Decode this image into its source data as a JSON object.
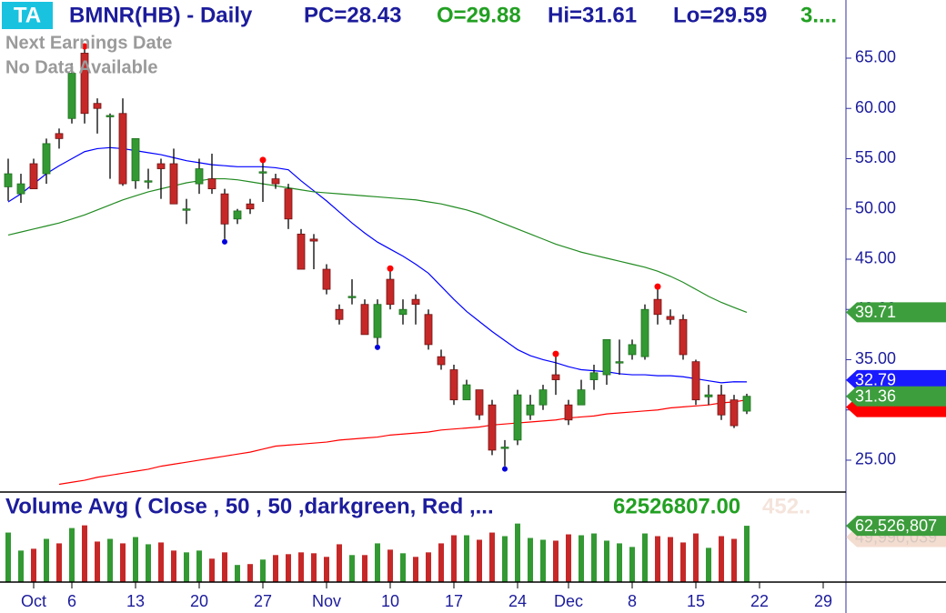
{
  "header": {
    "badge": "TA",
    "title": "BMNR(HB) - Daily",
    "pc": "PC=28.43",
    "open": "O=29.88",
    "high": "Hi=31.61",
    "low": "Lo=29.59",
    "more": "3....",
    "earnings": "Next Earnings Date",
    "earnings_note": "No Data Available"
  },
  "chart_data": {
    "type": "candlestick",
    "categories": [
      null,
      null,
      "Oct",
      null,
      null,
      "6",
      null,
      null,
      null,
      null,
      "13",
      null,
      null,
      null,
      null,
      "20",
      null,
      null,
      null,
      null,
      "27",
      null,
      null,
      null,
      null,
      "Nov",
      null,
      null,
      null,
      null,
      "10",
      null,
      null,
      null,
      null,
      "17",
      null,
      null,
      null,
      null,
      "24",
      null,
      null,
      null,
      "Dec",
      null,
      null,
      null,
      null,
      "8",
      null,
      null,
      null,
      null,
      "15",
      null,
      null,
      null,
      null,
      "22",
      null,
      null,
      null,
      null,
      "29"
    ],
    "open": [
      52.2,
      51.5,
      54.5,
      53.5,
      57.5,
      59,
      65.5,
      60.5,
      59.3,
      59.5,
      52.8,
      52.8,
      54.5,
      54.5,
      50,
      52.5,
      53,
      51.5,
      49,
      50.5,
      53.7,
      53,
      52,
      47.5,
      47,
      44,
      40,
      41.3,
      40.5,
      37.2,
      43,
      39.5,
      41,
      39.5,
      35.3,
      34,
      31,
      32,
      30.5,
      26.3,
      27,
      29.5,
      30.5,
      33.5,
      30.5,
      30.5,
      33,
      33.5,
      34.8,
      35.5,
      35.3,
      41,
      39.3,
      39,
      34.8,
      31.3,
      31.5,
      31,
      29.88,
      null,
      null,
      null,
      null,
      null,
      null
    ],
    "high": [
      55,
      53.5,
      55,
      57,
      58,
      64.5,
      65.9,
      61,
      59.5,
      61,
      57,
      54,
      55,
      56,
      51,
      55,
      55.5,
      52,
      50,
      51,
      54.6,
      53.5,
      52.5,
      48,
      47.5,
      44.5,
      40.5,
      43,
      41,
      41,
      43.8,
      41,
      41.5,
      40,
      36,
      34.5,
      33,
      32,
      31,
      27,
      32,
      31.5,
      32.5,
      35.3,
      31,
      33,
      34.5,
      37,
      37,
      37,
      40.5,
      42,
      40,
      39.5,
      35,
      32.5,
      32.5,
      31.5,
      31.61,
      null,
      null,
      null,
      null,
      null,
      null
    ],
    "low": [
      50.8,
      50.6,
      52,
      52.5,
      56,
      58.5,
      58.5,
      57.5,
      53,
      52.3,
      52,
      52,
      51,
      50.5,
      48.5,
      51.5,
      51.5,
      47,
      48.5,
      49.5,
      50.7,
      52,
      48,
      44,
      44,
      41.5,
      38.5,
      40.5,
      37.5,
      36.5,
      40,
      38.5,
      38.5,
      36,
      34,
      30.5,
      31,
      29,
      25.5,
      24.4,
      26.5,
      29,
      30,
      31.5,
      28.5,
      30.5,
      32,
      32.5,
      33.5,
      35,
      35,
      38.5,
      38.5,
      35,
      30.5,
      30.5,
      29,
      28.2,
      29.59,
      null,
      null,
      null,
      null,
      null,
      null
    ],
    "close": [
      53.5,
      52.5,
      52,
      56.5,
      57,
      63.5,
      59.5,
      60,
      59.3,
      52.5,
      57,
      52.8,
      54,
      50.5,
      50,
      54,
      52,
      48.5,
      49.8,
      50,
      53.7,
      52.5,
      49,
      44,
      46.8,
      42,
      39,
      41.3,
      37.5,
      40.5,
      40.5,
      40,
      40.5,
      36.5,
      34.5,
      31,
      32.5,
      29.5,
      26,
      26.3,
      31.5,
      30.5,
      32,
      33,
      29,
      32,
      33.7,
      37,
      34.8,
      36.5,
      40,
      39.5,
      39,
      35.5,
      31,
      31.5,
      29.5,
      28.43,
      31.36,
      null,
      null,
      null,
      null,
      null,
      null
    ],
    "up_color": "#339933",
    "down_color": "#c62828",
    "high_markers": [
      6,
      20,
      30,
      43,
      51
    ],
    "low_markers": [
      17,
      29,
      39
    ],
    "series": [
      {
        "color": "#0000ff",
        "values": [
          50.7,
          51.5,
          52.5,
          53.5,
          54.3,
          55,
          55.7,
          56,
          56.1,
          56,
          55.8,
          55.6,
          55.4,
          55.1,
          54.8,
          54.6,
          54.4,
          54.3,
          54.2,
          54.2,
          54.2,
          54.1,
          53.9,
          52.8,
          51.8,
          50.8,
          49.7,
          48.6,
          47.6,
          46.7,
          46,
          45.3,
          44.5,
          43.6,
          42.3,
          41,
          39.8,
          38.8,
          37.8,
          36.9,
          36,
          35.4,
          35,
          34.7,
          34.3,
          34,
          33.9,
          33.8,
          33.6,
          33.5,
          33.5,
          33.4,
          33.4,
          33.3,
          33.1,
          32.9,
          32.7,
          32.8,
          32.79,
          null,
          null,
          null,
          null,
          null,
          null
        ]
      },
      {
        "color": "#228b22",
        "values": [
          47.4,
          47.7,
          48,
          48.3,
          48.6,
          49,
          49.4,
          49.9,
          50.4,
          50.9,
          51.3,
          51.7,
          52,
          52.3,
          52.6,
          52.8,
          53,
          53,
          52.9,
          52.7,
          52.5,
          52.3,
          52.1,
          51.9,
          51.7,
          51.6,
          51.5,
          51.4,
          51.3,
          51.2,
          51.1,
          51,
          50.9,
          50.7,
          50.5,
          50.2,
          49.9,
          49.5,
          49,
          48.5,
          48,
          47.5,
          47,
          46.5,
          46.1,
          45.7,
          45.4,
          45.1,
          44.8,
          44.5,
          44.2,
          43.8,
          43.3,
          42.7,
          42,
          41.3,
          40.7,
          40.2,
          39.71,
          null,
          null,
          null,
          null,
          null,
          null
        ]
      },
      {
        "color": "#ff0000",
        "values": [
          null,
          null,
          null,
          null,
          22.6,
          22.8,
          23.0,
          23.3,
          23.5,
          23.7,
          23.9,
          24.1,
          24.4,
          24.6,
          24.8,
          25.0,
          25.2,
          25.4,
          25.6,
          25.8,
          26.1,
          26.4,
          26.5,
          26.6,
          26.7,
          26.8,
          27.0,
          27.1,
          27.2,
          27.3,
          27.5,
          27.6,
          27.7,
          27.8,
          28.0,
          28.1,
          28.2,
          28.3,
          28.5,
          28.6,
          28.7,
          28.8,
          28.9,
          29.0,
          29.2,
          29.3,
          29.4,
          29.6,
          29.7,
          29.8,
          29.9,
          30.0,
          30.2,
          30.3,
          30.4,
          30.5,
          30.7,
          30.8,
          31.0,
          null,
          null,
          null,
          null,
          null,
          null
        ]
      }
    ],
    "ylim": [
      21.92,
      70.79
    ],
    "yticks": [
      {
        "value": 25,
        "label": "25.00"
      },
      {
        "value": 30,
        "label": "30.00"
      },
      {
        "value": 35,
        "label": "35.00"
      },
      {
        "value": 40,
        "label": "40.00"
      },
      {
        "value": 45,
        "label": "45.00"
      },
      {
        "value": 50,
        "label": "50.00"
      },
      {
        "value": 55,
        "label": "55.00"
      },
      {
        "value": 60,
        "label": "60.00"
      },
      {
        "value": 65,
        "label": "65.00"
      }
    ],
    "volume": {
      "title": "Volume Avg ( Close , 50 , 50 ,darkgreen, Red ,...",
      "legend_value": "62526807.00",
      "legend_faint": "452..",
      "values": [
        55000000,
        35000000,
        37000000,
        48000000,
        43000000,
        60000000,
        63000000,
        45000000,
        48000000,
        43000000,
        50000000,
        42000000,
        44000000,
        35000000,
        33000000,
        35000000,
        26000000,
        33000000,
        19000000,
        20000000,
        25000000,
        30000000,
        31000000,
        33000000,
        32000000,
        28000000,
        42000000,
        30000000,
        30000000,
        43000000,
        36000000,
        32000000,
        28000000,
        33000000,
        43000000,
        52000000,
        52000000,
        47000000,
        55000000,
        51000000,
        65000000,
        49000000,
        47000000,
        46000000,
        53000000,
        52000000,
        54000000,
        46000000,
        43000000,
        39000000,
        54000000,
        51000000,
        50000000,
        44000000,
        54000000,
        38000000,
        51000000,
        48000000,
        62526807,
        null,
        null,
        null,
        null,
        null,
        null
      ],
      "ylim": [
        0,
        100000000
      ],
      "tags": [
        {
          "value": 49990039,
          "label": "49,990,039",
          "color": "#f3ddd0"
        },
        {
          "value": 62526807,
          "label": "62,526,807",
          "color": "#3c9c3c"
        }
      ]
    }
  }
}
